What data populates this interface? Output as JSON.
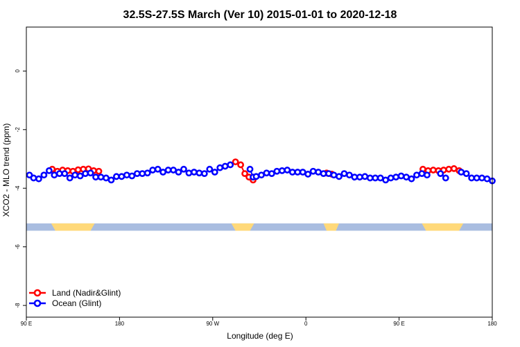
{
  "chart_data": {
    "type": "line",
    "title": "32.5S-27.5S March (Ver 10)   2015-01-01 to 2020-12-18",
    "xlabel": "Longitude (deg E)",
    "ylabel": "XCO2 - MLO trend (ppm)",
    "xlim": [
      90,
      540
    ],
    "ylim": [
      -8.4,
      1.5
    ],
    "x_ticks": [
      {
        "value": 90,
        "label": "90 E"
      },
      {
        "value": 180,
        "label": "180"
      },
      {
        "value": 270,
        "label": "90 W"
      },
      {
        "value": 360,
        "label": "0"
      },
      {
        "value": 450,
        "label": "90 E"
      },
      {
        "value": 540,
        "label": "180"
      }
    ],
    "y_ticks": [
      {
        "value": 0,
        "label": "0"
      },
      {
        "value": -2,
        "label": "-2"
      },
      {
        "value": -4,
        "label": "-4"
      },
      {
        "value": -6,
        "label": "-6"
      },
      {
        "value": -8,
        "label": "-8"
      }
    ],
    "series": [
      {
        "name": "Land (Nadir&Glint)",
        "color": "#ff0000",
        "segments": [
          {
            "x": [
              115,
              120,
              125,
              130,
              135,
              140,
              145,
              150,
              155,
              160
            ],
            "y": [
              -3.35,
              -3.42,
              -3.38,
              -3.4,
              -3.42,
              -3.37,
              -3.35,
              -3.34,
              -3.4,
              -3.42
            ]
          },
          {
            "x": [
              292,
              297,
              301,
              305,
              309
            ],
            "y": [
              -3.1,
              -3.2,
              -3.5,
              -3.62,
              -3.72
            ]
          },
          {
            "x": [
              380,
              385
            ],
            "y": [
              -3.48,
              -3.52
            ]
          },
          {
            "x": [
              473,
              478,
              483,
              488,
              493,
              498,
              503,
              508
            ],
            "y": [
              -3.35,
              -3.4,
              -3.38,
              -3.4,
              -3.38,
              -3.35,
              -3.33,
              -3.4
            ]
          }
        ]
      },
      {
        "name": "Ocean (Glint)",
        "color": "#0000ff",
        "segments": [
          {
            "x": [
              93,
              97,
              102,
              107,
              112,
              117,
              122,
              127,
              132,
              137,
              142,
              147,
              152,
              157,
              162,
              167,
              172,
              177,
              182,
              187,
              192,
              197,
              202,
              207,
              212,
              217,
              222,
              227,
              232,
              237,
              242,
              247,
              252,
              257,
              262,
              267,
              272,
              277,
              282,
              287
            ],
            "y": [
              -3.55,
              -3.65,
              -3.68,
              -3.55,
              -3.4,
              -3.55,
              -3.5,
              -3.5,
              -3.65,
              -3.55,
              -3.58,
              -3.5,
              -3.48,
              -3.62,
              -3.62,
              -3.65,
              -3.72,
              -3.6,
              -3.6,
              -3.55,
              -3.58,
              -3.5,
              -3.5,
              -3.48,
              -3.38,
              -3.35,
              -3.45,
              -3.38,
              -3.38,
              -3.45,
              -3.35,
              -3.48,
              -3.45,
              -3.48,
              -3.5,
              -3.35,
              -3.45,
              -3.3,
              -3.25,
              -3.2
            ]
          },
          {
            "x": [
              306,
              309
            ],
            "y": [
              -3.35,
              -3.62
            ]
          },
          {
            "x": [
              312,
              317,
              322,
              327,
              332,
              337,
              342,
              347,
              352,
              357,
              362,
              367,
              372,
              377,
              382
            ],
            "y": [
              -3.6,
              -3.55,
              -3.48,
              -3.5,
              -3.42,
              -3.4,
              -3.38,
              -3.45,
              -3.45,
              -3.45,
              -3.52,
              -3.42,
              -3.45,
              -3.5,
              -3.5
            ]
          },
          {
            "x": [
              387,
              392,
              397,
              402,
              407,
              412,
              417,
              422,
              427,
              432,
              437,
              442,
              447,
              452,
              457,
              462,
              467,
              472,
              477
            ],
            "y": [
              -3.55,
              -3.6,
              -3.5,
              -3.55,
              -3.62,
              -3.62,
              -3.6,
              -3.65,
              -3.65,
              -3.65,
              -3.72,
              -3.65,
              -3.62,
              -3.58,
              -3.62,
              -3.68,
              -3.55,
              -3.5,
              -3.55
            ]
          },
          {
            "x": [
              490,
              495
            ],
            "y": [
              -3.5,
              -3.65
            ]
          },
          {
            "x": [
              510,
              515,
              520,
              525,
              530,
              535,
              540
            ],
            "y": [
              -3.45,
              -3.5,
              -3.65,
              -3.65,
              -3.65,
              -3.68,
              -3.75
            ]
          }
        ]
      }
    ],
    "surface_band": {
      "y_top": -5.2,
      "y_bottom": -5.45,
      "ocean_color": "#a9bde0",
      "land_color": "#ffd97a",
      "land_spans": [
        [
          114,
          156
        ],
        [
          288,
          310
        ],
        [
          377,
          392
        ],
        [
          472,
          512
        ]
      ]
    },
    "legend": {
      "position": "bottom-left",
      "entries": [
        {
          "label": "Land (Nadir&Glint)",
          "color": "#ff0000"
        },
        {
          "label": "Ocean (Glint)",
          "color": "#0000ff"
        }
      ]
    },
    "grid": false
  }
}
